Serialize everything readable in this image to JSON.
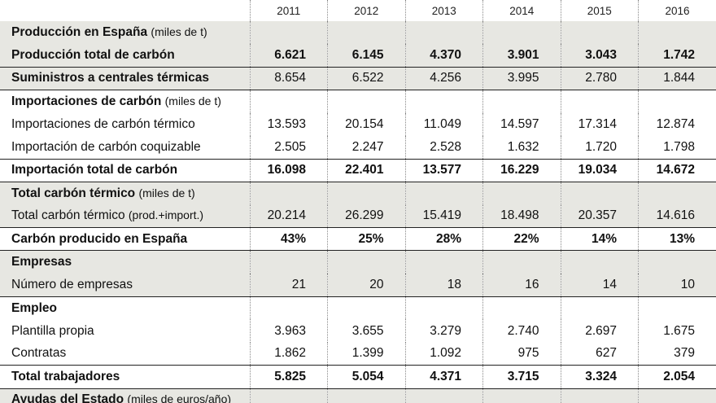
{
  "years": [
    "2011",
    "2012",
    "2013",
    "2014",
    "2015",
    "2016"
  ],
  "rows": [
    {
      "label": "Producción en España",
      "unit": "(miles de t)",
      "values": [],
      "bold": false,
      "header": true,
      "shade": true,
      "rule": false
    },
    {
      "label": "Producción total de carbón",
      "unit": "",
      "values": [
        "6.621",
        "6.145",
        "4.370",
        "3.901",
        "3.043",
        "1.742"
      ],
      "bold": true,
      "header": false,
      "shade": true,
      "rule": true,
      "mixed": true
    },
    {
      "label": "Suministros a centrales térmicas",
      "unit": "",
      "values": [
        "8.654",
        "6.522",
        "4.256",
        "3.995",
        "2.780",
        "1.844"
      ],
      "bold": false,
      "header": false,
      "shade": true,
      "rule": true,
      "labelBold": true
    },
    {
      "label": "Importaciones de carbón",
      "unit": "(miles de t)",
      "values": [],
      "bold": false,
      "header": true,
      "shade": false,
      "rule": false
    },
    {
      "label": "Importaciones de carbón térmico",
      "unit": "",
      "values": [
        "13.593",
        "20.154",
        "11.049",
        "14.597",
        "17.314",
        "12.874"
      ],
      "bold": false,
      "header": false,
      "shade": false,
      "rule": false
    },
    {
      "label": "Importación de carbón coquizable",
      "unit": "",
      "values": [
        "2.505",
        "2.247",
        "2.528",
        "1.632",
        "1.720",
        "1.798"
      ],
      "bold": false,
      "header": false,
      "shade": false,
      "rule": true
    },
    {
      "label": "Importación total de carbón",
      "unit": "",
      "values": [
        "16.098",
        "22.401",
        "13.577",
        "16.229",
        "19.034",
        "14.672"
      ],
      "bold": true,
      "header": false,
      "shade": false,
      "rule": true
    },
    {
      "label": "Total carbón térmico",
      "unit": "(miles de t)",
      "values": [],
      "bold": false,
      "header": true,
      "shade": true,
      "rule": false
    },
    {
      "label": "Total carbón térmico",
      "unit": "(prod.+import.)",
      "values": [
        "20.214",
        "26.299",
        "15.419",
        "18.498",
        "20.357",
        "14.616"
      ],
      "bold": false,
      "header": false,
      "shade": true,
      "rule": true
    },
    {
      "label": "Carbón producido en España",
      "unit": "",
      "values": [
        "43%",
        "25%",
        "28%",
        "22%",
        "14%",
        "13%"
      ],
      "bold": true,
      "header": false,
      "shade": false,
      "rule": true
    },
    {
      "label": "Empresas",
      "unit": "",
      "values": [],
      "bold": false,
      "header": true,
      "shade": true,
      "rule": false
    },
    {
      "label": "Número de empresas",
      "unit": "",
      "values": [
        "21",
        "20",
        "18",
        "16",
        "14",
        "10"
      ],
      "bold": false,
      "header": false,
      "shade": true,
      "rule": true
    },
    {
      "label": "Empleo",
      "unit": "",
      "values": [],
      "bold": false,
      "header": true,
      "shade": false,
      "rule": false
    },
    {
      "label": "Plantilla propia",
      "unit": "",
      "values": [
        "3.963",
        "3.655",
        "3.279",
        "2.740",
        "2.697",
        "1.675"
      ],
      "bold": false,
      "header": false,
      "shade": false,
      "rule": false
    },
    {
      "label": "Contratas",
      "unit": "",
      "values": [
        "1.862",
        "1.399",
        "1.092",
        "975",
        "627",
        "379"
      ],
      "bold": false,
      "header": false,
      "shade": false,
      "rule": true
    },
    {
      "label": "Total trabajadores",
      "unit": "",
      "values": [
        "5.825",
        "5.054",
        "4.371",
        "3.715",
        "3.324",
        "2.054"
      ],
      "bold": true,
      "header": false,
      "shade": false,
      "rule": true
    },
    {
      "label": "Ayudas del Estado",
      "unit": "(miles de euros/año)",
      "values": [],
      "bold": false,
      "header": true,
      "shade": true,
      "rule": false
    }
  ]
}
